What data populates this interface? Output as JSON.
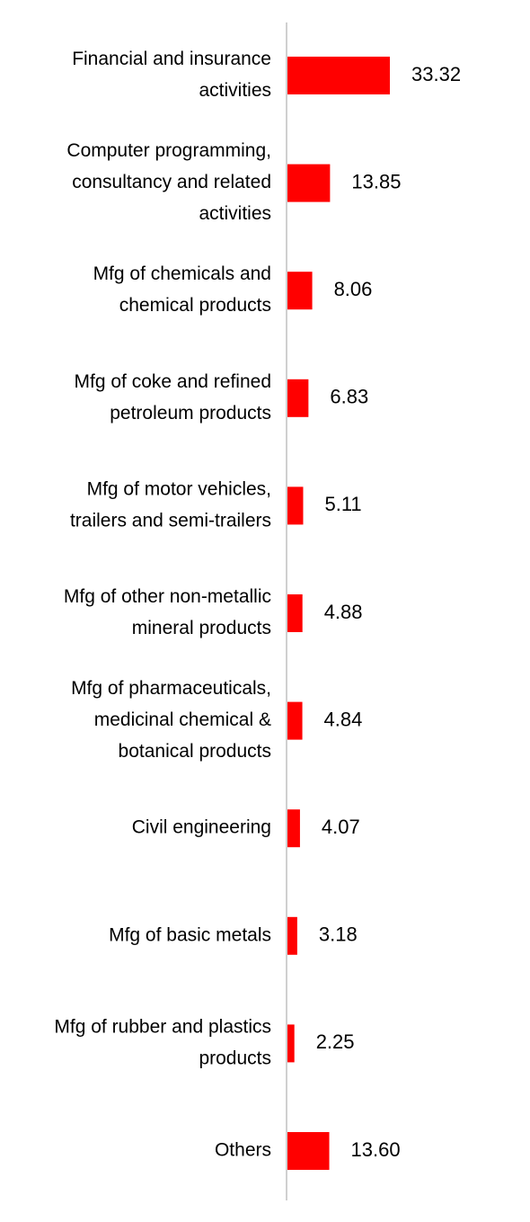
{
  "chart_data": {
    "type": "bar",
    "orientation": "horizontal",
    "categories": [
      [
        "Financial and insurance",
        "activities"
      ],
      [
        "Computer programming,",
        "consultancy and related",
        "activities"
      ],
      [
        "Mfg of chemicals and",
        "chemical products"
      ],
      [
        "Mfg of coke and refined",
        "petroleum products"
      ],
      [
        "Mfg of motor vehicles,",
        "trailers and semi-trailers"
      ],
      [
        "Mfg of other non-metallic",
        "mineral products"
      ],
      [
        "Mfg of pharmaceuticals,",
        "medicinal chemical &",
        "botanical products"
      ],
      [
        "Civil engineering"
      ],
      [
        "Mfg of basic metals"
      ],
      [
        "Mfg of rubber and plastics",
        "products"
      ],
      [
        "Others"
      ]
    ],
    "values": [
      33.32,
      13.85,
      8.06,
      6.83,
      5.11,
      4.88,
      4.84,
      4.07,
      3.18,
      2.25,
      13.6
    ],
    "value_labels": [
      "33.32",
      "13.85",
      "8.06",
      "6.83",
      "5.11",
      "4.88",
      "4.84",
      "4.07",
      "3.18",
      "2.25",
      "13.60"
    ],
    "bar_color": "#ff0000",
    "axis_color": "#d0d0d0",
    "xlim": [
      0,
      33.32
    ],
    "title": "",
    "xlabel": "",
    "ylabel": "",
    "grid": false,
    "legend": "none"
  }
}
